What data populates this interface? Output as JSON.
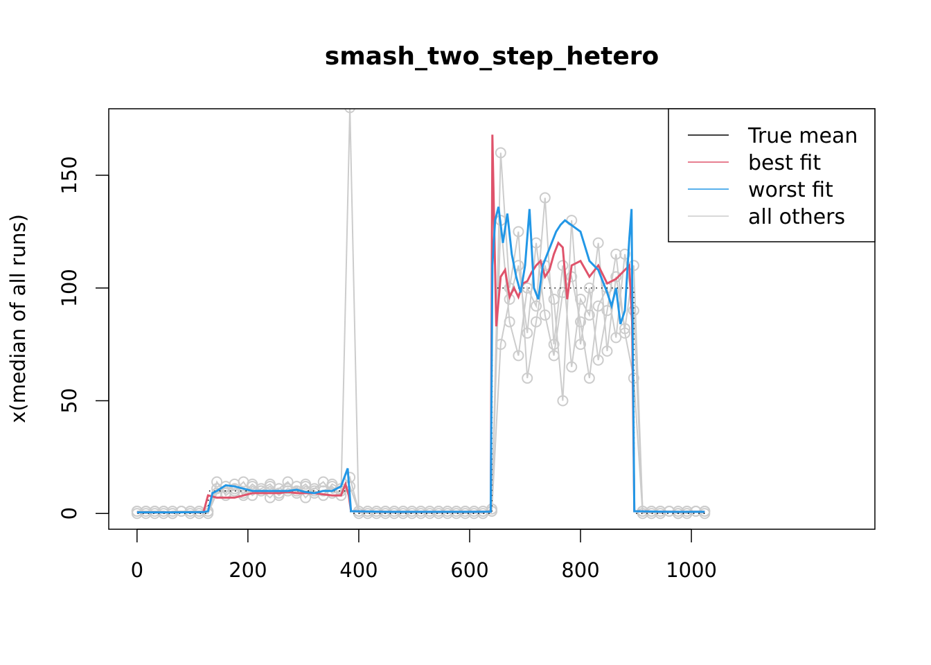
{
  "chart_data": {
    "type": "line",
    "title": "smash_two_step_hetero",
    "xlabel": "",
    "ylabel": "x(median of all runs)",
    "xlim": [
      -51,
      1331
    ],
    "ylim": [
      -7,
      179.5
    ],
    "xticks": [
      0,
      200,
      400,
      600,
      800,
      1000
    ],
    "yticks": [
      0,
      50,
      100,
      150
    ],
    "grid": false,
    "legend_position": "top-right",
    "legend": [
      {
        "label": "True mean",
        "color": "#000000"
      },
      {
        "label": "best fit",
        "color": "#DF536B"
      },
      {
        "label": "worst fit",
        "color": "#2297E6"
      },
      {
        "label": "all others",
        "color": "#CCCCCC"
      }
    ],
    "true_mean": {
      "x": [
        1,
        128,
        129,
        384,
        385,
        640,
        641,
        896,
        897,
        1024
      ],
      "y": [
        0,
        0,
        10,
        10,
        0,
        0,
        100,
        100,
        0,
        0
      ]
    },
    "best_fit": {
      "x": [
        0,
        64,
        120,
        128,
        144,
        160,
        176,
        192,
        208,
        224,
        240,
        256,
        272,
        288,
        304,
        320,
        336,
        352,
        368,
        376,
        382,
        386,
        450,
        520,
        600,
        638,
        641,
        648,
        656,
        664,
        672,
        680,
        688,
        696,
        704,
        712,
        720,
        728,
        736,
        744,
        752,
        760,
        768,
        776,
        784,
        800,
        816,
        832,
        848,
        864,
        880,
        888,
        893,
        897,
        960,
        1024
      ],
      "y": [
        0.5,
        0.5,
        0.6,
        8,
        7,
        7,
        7,
        8,
        9,
        9,
        9,
        9,
        9.5,
        9,
        9,
        9,
        8.5,
        8,
        8,
        13,
        8,
        1,
        0.7,
        0.7,
        0.7,
        0.8,
        168,
        83,
        105,
        108,
        96,
        100,
        96,
        102,
        103,
        107,
        110,
        112,
        105,
        108,
        115,
        120,
        118,
        95,
        110,
        112,
        105,
        110,
        102,
        104,
        108,
        110,
        85,
        1,
        0.7,
        0.7
      ]
    },
    "worst_fit": {
      "x": [
        0,
        64,
        120,
        128,
        136,
        144,
        160,
        176,
        192,
        208,
        224,
        240,
        256,
        272,
        288,
        304,
        320,
        336,
        352,
        368,
        380,
        386,
        450,
        520,
        600,
        638,
        641,
        646,
        652,
        660,
        668,
        676,
        684,
        692,
        700,
        708,
        716,
        724,
        732,
        740,
        748,
        756,
        764,
        772,
        800,
        816,
        832,
        848,
        856,
        864,
        872,
        880,
        888,
        892,
        897,
        960,
        1024
      ],
      "y": [
        0.5,
        0.5,
        0.6,
        1,
        9,
        10,
        12.5,
        12,
        11,
        10,
        10,
        10,
        10,
        10,
        10.5,
        9.5,
        9,
        10,
        10,
        12,
        20,
        1,
        0.7,
        0.7,
        0.7,
        0.8,
        110,
        130,
        136,
        120,
        133,
        115,
        105,
        98,
        110,
        135,
        100,
        95,
        110,
        115,
        120,
        125,
        128,
        130,
        125,
        112,
        108,
        98,
        92,
        100,
        84,
        90,
        122,
        135,
        1,
        0.7,
        0.7
      ]
    },
    "all_others": {
      "x": [
        0,
        16,
        32,
        48,
        64,
        80,
        96,
        112,
        128,
        144,
        160,
        176,
        192,
        208,
        224,
        240,
        256,
        272,
        288,
        304,
        320,
        336,
        352,
        368,
        384,
        400,
        416,
        432,
        448,
        464,
        480,
        496,
        512,
        528,
        544,
        560,
        576,
        592,
        608,
        624,
        640,
        656,
        672,
        688,
        704,
        720,
        736,
        752,
        768,
        784,
        800,
        816,
        832,
        848,
        864,
        880,
        896,
        912,
        928,
        944,
        960,
        976,
        992,
        1008,
        1024
      ],
      "series": [
        [
          1,
          0,
          1,
          1,
          0,
          1,
          1,
          0,
          1,
          11,
          9,
          13,
          8,
          12,
          10,
          7,
          11,
          14,
          9,
          12,
          10,
          8,
          13,
          11,
          12,
          1,
          0,
          1,
          1,
          0,
          1,
          1,
          0,
          1,
          1,
          0,
          1,
          1,
          0,
          1,
          1,
          75,
          95,
          110,
          80,
          120,
          88,
          70,
          98,
          105,
          85,
          60,
          92,
          100,
          78,
          115,
          90,
          1,
          0,
          1,
          1,
          0,
          1,
          1,
          0
        ],
        [
          0,
          1,
          1,
          0,
          1,
          1,
          0,
          1,
          0,
          9,
          12,
          10,
          14,
          8,
          11,
          13,
          9,
          10,
          12,
          7,
          11,
          14,
          9,
          10,
          16,
          1,
          1,
          0,
          1,
          1,
          0,
          1,
          1,
          0,
          1,
          1,
          0,
          1,
          1,
          0,
          2,
          130,
          85,
          70,
          100,
          92,
          140,
          75,
          110,
          65,
          95,
          88,
          120,
          72,
          105,
          82,
          110,
          1,
          1,
          0,
          1,
          1,
          0,
          1,
          1
        ],
        [
          1,
          1,
          0,
          1,
          0,
          1,
          1,
          1,
          1,
          14,
          8,
          11,
          9,
          13,
          10,
          12,
          8,
          11,
          10,
          13,
          9,
          10,
          12,
          8,
          180,
          0,
          1,
          1,
          0,
          1,
          1,
          0,
          1,
          1,
          0,
          1,
          1,
          0,
          1,
          1,
          1,
          160,
          100,
          125,
          60,
          85,
          110,
          95,
          50,
          130,
          75,
          100,
          68,
          90,
          115,
          80,
          60,
          0,
          1,
          1,
          1,
          0,
          1,
          1,
          1
        ]
      ]
    }
  }
}
